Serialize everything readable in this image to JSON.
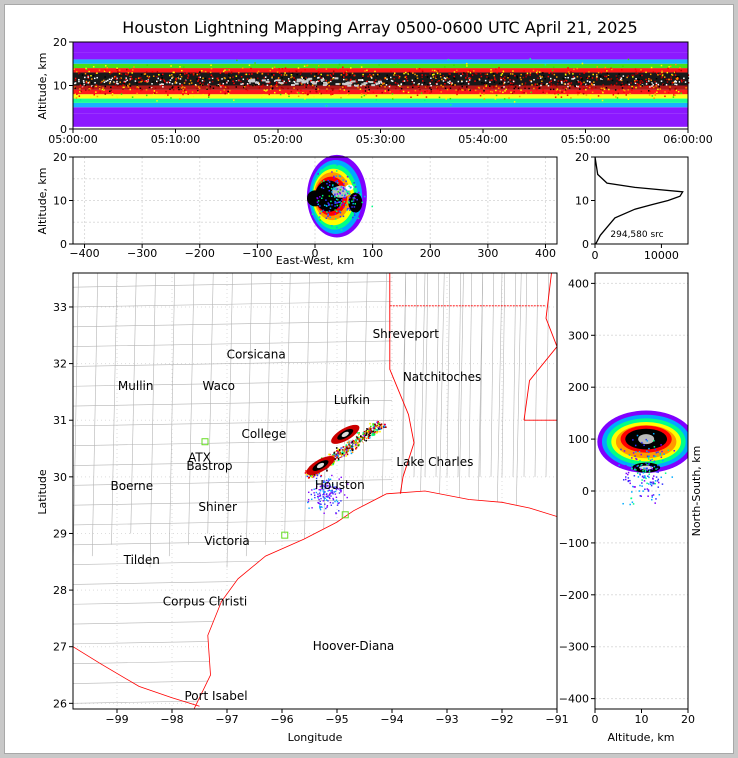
{
  "title": "Houston Lightning Mapping Array 0500-0600 UTC April 21, 2025",
  "colors": {
    "scale": [
      "#7f00ff",
      "#3333ff",
      "#00aaff",
      "#00ff88",
      "#33dd00",
      "#ffff00",
      "#ff9900",
      "#ff0000",
      "#aa0000",
      "#000000",
      "#ffffff"
    ],
    "border": "#ff0000",
    "county": "#b4b4b4",
    "station_orange": "#e08a57",
    "station_green": "#66dd22",
    "hoover_blue": "#1a1aff"
  },
  "panels": {
    "time": {
      "ylabel": "Altitude, km",
      "yticks": [
        "0",
        "10",
        "20"
      ],
      "xticks": [
        "05:00:00",
        "05:10:00",
        "05:20:00",
        "05:30:00",
        "05:40:00",
        "05:50:00",
        "06:00:00"
      ]
    },
    "ew": {
      "ylabel": "Altitude, km",
      "xlabel": "East-West, km",
      "yticks": [
        "0",
        "10",
        "20"
      ],
      "xticks": [
        "−400",
        "−300",
        "−200",
        "−100",
        "0",
        "100",
        "200",
        "300",
        "400"
      ]
    },
    "hist": {
      "yticks": [
        "0",
        "10",
        "20"
      ],
      "xticks": [
        "0",
        "10000"
      ],
      "count": "294,580 src"
    },
    "map": {
      "xlabel": "Longitude",
      "ylabel": "Latitude",
      "xticks": [
        "−99",
        "−98",
        "−97",
        "−96",
        "−95",
        "−94",
        "−93",
        "−92",
        "−91"
      ],
      "yticks": [
        "26",
        "27",
        "28",
        "29",
        "30",
        "31",
        "32",
        "33"
      ]
    },
    "ns": {
      "xlabel": "Altitude, km",
      "ylabel": "North-South, km",
      "xticks": [
        "0",
        "10",
        "20"
      ],
      "yticks": [
        "−400",
        "−300",
        "−200",
        "−100",
        "0",
        "100",
        "200",
        "300",
        "400"
      ]
    }
  },
  "cities": [
    {
      "name": "Shreveport",
      "lon": -93.75,
      "lat": 32.52,
      "color": "#000000"
    },
    {
      "name": "Corsicana",
      "lon": -96.47,
      "lat": 32.16,
      "color": "#000000"
    },
    {
      "name": "Natchitoches",
      "lon": -93.09,
      "lat": 31.76,
      "color": "#000000"
    },
    {
      "name": "Mullin",
      "lon": -98.66,
      "lat": 31.6,
      "color": "#e08a57"
    },
    {
      "name": "Waco",
      "lon": -97.15,
      "lat": 31.6,
      "color": "#000000"
    },
    {
      "name": "Lufkin",
      "lon": -94.73,
      "lat": 31.36,
      "color": "#000000"
    },
    {
      "name": "College",
      "lon": -96.33,
      "lat": 30.76,
      "color": "#000000"
    },
    {
      "name": "ATX",
      "lon": -97.5,
      "lat": 30.34,
      "color": "#e08a57"
    },
    {
      "name": "Bastrop",
      "lon": -97.32,
      "lat": 30.19,
      "color": "#000000"
    },
    {
      "name": "Lake Charles",
      "lon": -93.22,
      "lat": 30.26,
      "color": "#000000"
    },
    {
      "name": "Boerne",
      "lon": -98.73,
      "lat": 29.84,
      "color": "#000000"
    },
    {
      "name": "Houston",
      "lon": -94.95,
      "lat": 29.86,
      "color": "#e0a020"
    },
    {
      "name": "Shiner",
      "lon": -97.17,
      "lat": 29.47,
      "color": "#000000"
    },
    {
      "name": "Victoria",
      "lon": -97.0,
      "lat": 28.87,
      "color": "#000000"
    },
    {
      "name": "Tilden",
      "lon": -98.55,
      "lat": 28.53,
      "color": "#000000"
    },
    {
      "name": "Corpus Christi",
      "lon": -97.4,
      "lat": 27.8,
      "color": "#000000"
    },
    {
      "name": "Hoover-Diana",
      "lon": -94.7,
      "lat": 27.01,
      "color": "#1a1aff"
    },
    {
      "name": "Port Isabel",
      "lon": -97.2,
      "lat": 26.13,
      "color": "#000000"
    }
  ],
  "chart_data": [
    {
      "type": "scatter",
      "panel": "time-height",
      "title": "Houston Lightning Mapping Array 0500-0600 UTC April 21, 2025",
      "ylabel": "Altitude, km",
      "xlim": [
        "05:00:00",
        "06:00:00"
      ],
      "ylim": [
        0,
        20
      ],
      "x": [
        "05:00",
        "05:10",
        "05:20",
        "05:30",
        "05:40",
        "05:50",
        "06:00"
      ],
      "core_altitude_km": [
        10.5,
        11,
        11.5,
        11,
        11,
        10.5,
        10.5
      ],
      "top_altitude_km": [
        16,
        16,
        16,
        16,
        16,
        15,
        15
      ],
      "base_altitude_km": [
        5,
        5,
        5,
        5,
        5,
        5,
        5
      ]
    },
    {
      "type": "scatter",
      "panel": "east-west vs altitude",
      "xlabel": "East-West, km",
      "ylabel": "Altitude, km",
      "xlim": [
        -420,
        420
      ],
      "ylim": [
        0,
        20
      ],
      "extent_east_west_km": [
        -20,
        95
      ],
      "core_east_west_km": 50,
      "core_altitude_km": 11
    },
    {
      "type": "line",
      "panel": "altitude histogram",
      "xlim": [
        0,
        14000
      ],
      "ylim": [
        0,
        20
      ],
      "altitude_km": [
        0,
        2,
        4,
        6,
        8,
        9,
        10,
        11,
        12,
        13,
        14,
        16,
        20
      ],
      "sources": [
        100,
        800,
        1900,
        3000,
        6000,
        8500,
        11000,
        12800,
        13200,
        6000,
        1800,
        400,
        0
      ],
      "total_sources": "294,580 src"
    },
    {
      "type": "scatter",
      "panel": "plan view map",
      "xlabel": "Longitude",
      "ylabel": "Latitude",
      "xlim": [
        -99.8,
        -91.0
      ],
      "ylim": [
        25.9,
        33.6
      ],
      "storm_core_lon": [
        -94.9,
        -94.7,
        -95.3
      ],
      "storm_core_lat": [
        30.75,
        30.7,
        30.25
      ]
    },
    {
      "type": "scatter",
      "panel": "north-south vs altitude",
      "xlabel": "Altitude, km",
      "ylabel": "North-South, km",
      "xlim": [
        0,
        20
      ],
      "ylim": [
        -420,
        420
      ],
      "extent_north_south_km": [
        35,
        140
      ],
      "core_north_south_km": 100,
      "core_altitude_km": 11
    }
  ]
}
